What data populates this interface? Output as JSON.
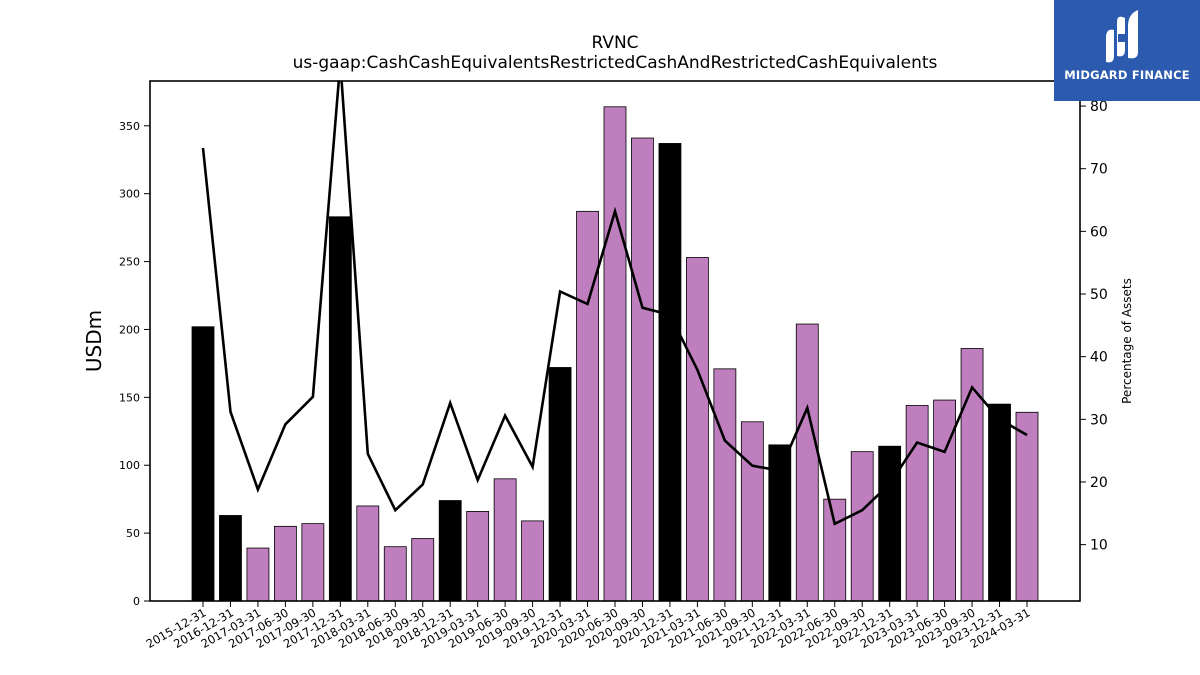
{
  "chart_data": {
    "type": "bar",
    "title": "RVNC",
    "subtitle": "us-gaap:CashCashEquivalentsRestrictedCashAndRestrictedCashEquivalents",
    "ylabel": "USDm",
    "y2label": "Percentage of Assets",
    "ylim": [
      0,
      383
    ],
    "y2lim": [
      1,
      84
    ],
    "yticks": [
      0,
      50,
      100,
      150,
      200,
      250,
      300,
      350
    ],
    "y2ticks": [
      10,
      20,
      30,
      40,
      50,
      60,
      70,
      80
    ],
    "categories": [
      "2015-12-31",
      "2016-12-31",
      "2017-03-31",
      "2017-06-30",
      "2017-09-30",
      "2017-12-31",
      "2018-03-31",
      "2018-06-30",
      "2018-09-30",
      "2018-12-31",
      "2019-03-31",
      "2019-06-30",
      "2019-09-30",
      "2019-12-31",
      "2020-03-31",
      "2020-06-30",
      "2020-09-30",
      "2020-12-31",
      "2021-03-31",
      "2021-06-30",
      "2021-09-30",
      "2021-12-31",
      "2022-03-31",
      "2022-06-30",
      "2022-09-30",
      "2022-12-31",
      "2023-03-31",
      "2023-06-30",
      "2023-09-30",
      "2023-12-31",
      "2024-03-31"
    ],
    "series": [
      {
        "type": "bar",
        "values": [
          202,
          63,
          39,
          55,
          57,
          283,
          70,
          40,
          46,
          74,
          66,
          90,
          59,
          172,
          287,
          364,
          341,
          337,
          253,
          171,
          132,
          115,
          204,
          75,
          110,
          114,
          144,
          148,
          186,
          145,
          139
        ],
        "annual_color": "#000000",
        "quarterly_color": "#bf7fbf",
        "is_annual": [
          true,
          true,
          false,
          false,
          false,
          true,
          false,
          false,
          false,
          true,
          false,
          false,
          false,
          true,
          false,
          false,
          false,
          true,
          false,
          false,
          false,
          true,
          false,
          false,
          false,
          true,
          false,
          false,
          false,
          true,
          false
        ]
      },
      {
        "type": "line",
        "axis": "right",
        "color": "#000000",
        "values": [
          73.3,
          31.2,
          18.8,
          29.2,
          33.6,
          87.0,
          24.5,
          15.5,
          19.6,
          32.6,
          20.3,
          30.6,
          22.4,
          50.4,
          48.4,
          63.2,
          47.8,
          46.7,
          37.9,
          26.6,
          22.6,
          21.8,
          31.8,
          13.3,
          15.5,
          19.7,
          26.3,
          24.8,
          35.1,
          30.0,
          27.5
        ]
      }
    ]
  },
  "logo": {
    "text": "MIDGARD FINANCE"
  }
}
